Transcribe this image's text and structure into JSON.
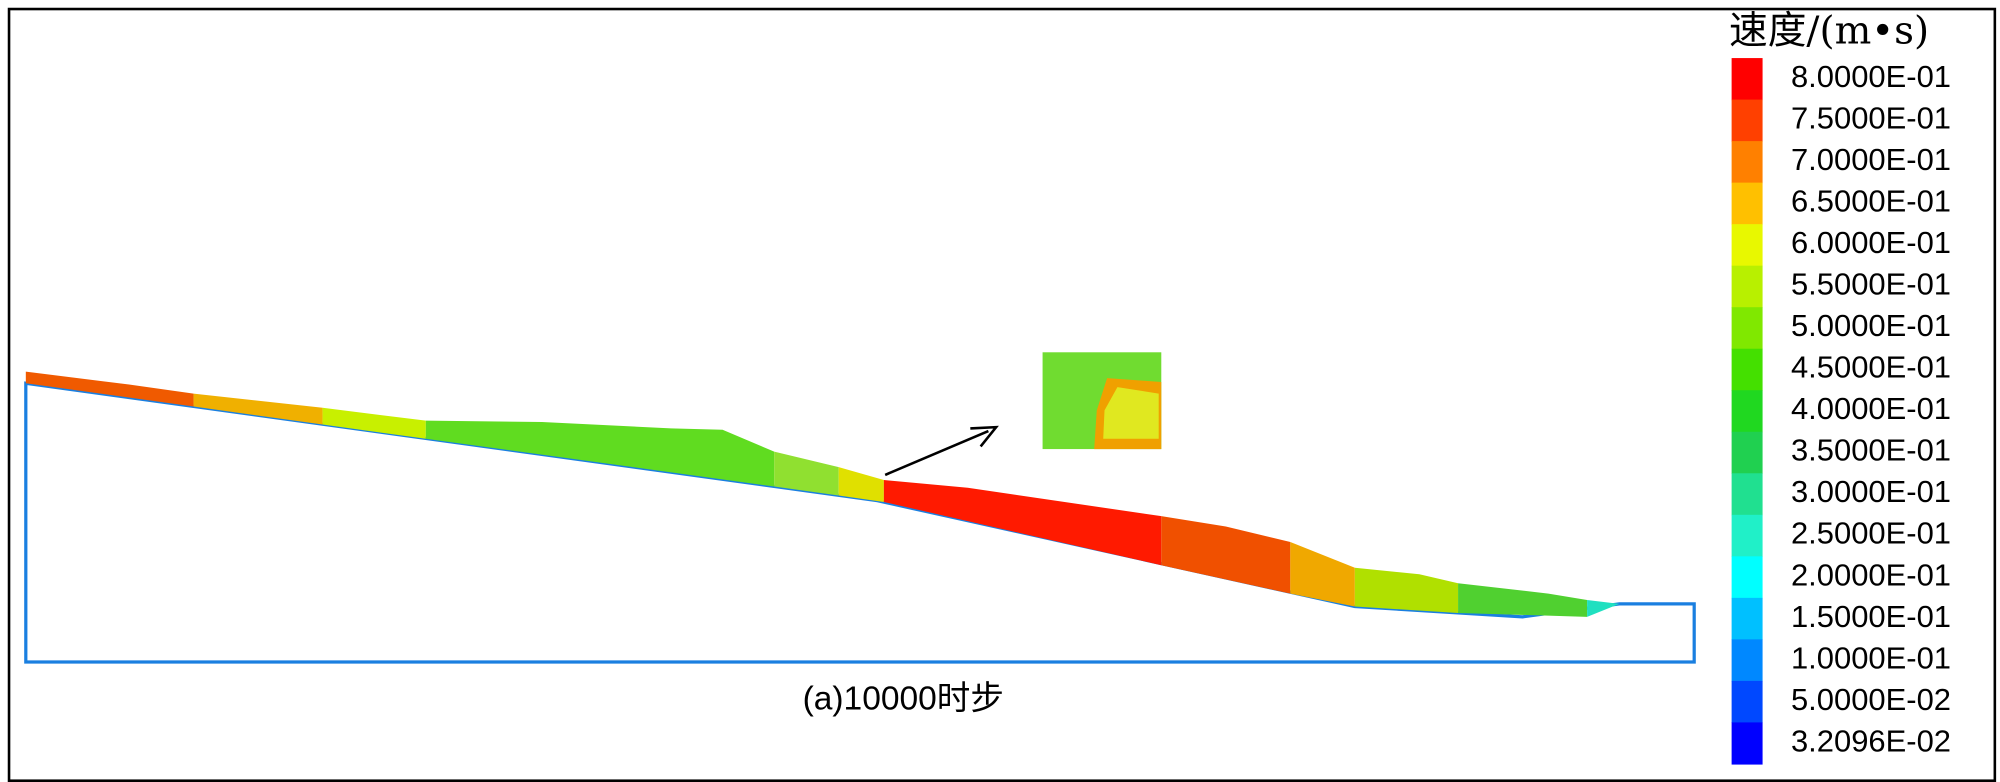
{
  "figure": {
    "caption": "(a)10000时步",
    "legend": {
      "title": "速度/(m•s)",
      "entries": [
        {
          "label": "8.0000E-01",
          "color": "#ff0000"
        },
        {
          "label": "7.5000E-01",
          "color": "#ff4000"
        },
        {
          "label": "7.0000E-01",
          "color": "#ff8000"
        },
        {
          "label": "6.5000E-01",
          "color": "#ffc000"
        },
        {
          "label": "6.0000E-01",
          "color": "#e8f800"
        },
        {
          "label": "5.5000E-01",
          "color": "#b8f000"
        },
        {
          "label": "5.0000E-01",
          "color": "#80e800"
        },
        {
          "label": "4.5000E-01",
          "color": "#44e000"
        },
        {
          "label": "4.0000E-01",
          "color": "#20d820"
        },
        {
          "label": "3.5000E-01",
          "color": "#20d050"
        },
        {
          "label": "3.0000E-01",
          "color": "#20e090"
        },
        {
          "label": "2.5000E-01",
          "color": "#20f0c8"
        },
        {
          "label": "2.0000E-01",
          "color": "#00ffff"
        },
        {
          "label": "1.5000E-01",
          "color": "#00c0ff"
        },
        {
          "label": "1.0000E-01",
          "color": "#0088ff"
        },
        {
          "label": "5.0000E-02",
          "color": "#0048ff"
        },
        {
          "label": "3.2096E-02",
          "color": "#0000ff"
        }
      ]
    }
  }
}
